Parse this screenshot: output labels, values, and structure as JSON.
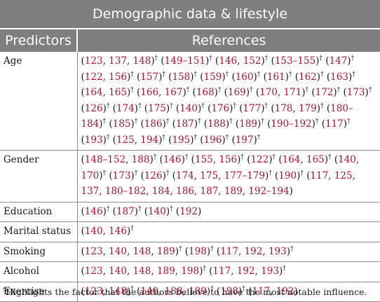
{
  "title": "Demographic data & lifestyle",
  "columns": [
    "Predictors",
    "References"
  ],
  "rows": [
    {
      "predictor": "Age",
      "refs": [
        {
          "nums": [
            "123",
            "137",
            "148"
          ],
          "dag": true
        },
        {
          "nums": [
            "149–151"
          ],
          "dag": true
        },
        {
          "nums": [
            "146",
            "152"
          ],
          "dag": true
        },
        {
          "nums": [
            "153–155"
          ],
          "dag": true
        },
        {
          "nums": [
            "147"
          ],
          "dag": true
        },
        {
          "nums": [
            "122",
            "156"
          ],
          "dag": true
        },
        {
          "nums": [
            "157"
          ],
          "dag": true
        },
        {
          "nums": [
            "158"
          ],
          "dag": true
        },
        {
          "nums": [
            "159"
          ],
          "dag": true
        },
        {
          "nums": [
            "160"
          ],
          "dag": true
        },
        {
          "nums": [
            "161"
          ],
          "dag": true
        },
        {
          "nums": [
            "162"
          ],
          "dag": true
        },
        {
          "nums": [
            "163"
          ],
          "dag": true
        },
        {
          "nums": [
            "164",
            "165"
          ],
          "dag": true
        },
        {
          "nums": [
            "166",
            "167"
          ],
          "dag": true
        },
        {
          "nums": [
            "168"
          ],
          "dag": true
        },
        {
          "nums": [
            "169"
          ],
          "dag": true
        },
        {
          "nums": [
            "170",
            "171"
          ],
          "dag": true
        },
        {
          "nums": [
            "172"
          ],
          "dag": true
        },
        {
          "nums": [
            "173"
          ],
          "dag": true
        },
        {
          "nums": [
            "126"
          ],
          "dag": true
        },
        {
          "nums": [
            "174"
          ],
          "dag": true
        },
        {
          "nums": [
            "175"
          ],
          "dag": true
        },
        {
          "nums": [
            "140"
          ],
          "dag": true
        },
        {
          "nums": [
            "176"
          ],
          "dag": true
        },
        {
          "nums": [
            "177"
          ],
          "dag": true
        },
        {
          "nums": [
            "178",
            "179"
          ],
          "dag": true
        },
        {
          "nums": [
            "180–184"
          ],
          "dag": true
        },
        {
          "nums": [
            "185"
          ],
          "dag": true
        },
        {
          "nums": [
            "186"
          ],
          "dag": true
        },
        {
          "nums": [
            "187"
          ],
          "dag": true
        },
        {
          "nums": [
            "188"
          ],
          "dag": true
        },
        {
          "nums": [
            "189"
          ],
          "dag": true
        },
        {
          "nums": [
            "190–192"
          ],
          "dag": true
        },
        {
          "nums": [
            "117"
          ],
          "dag": true
        },
        {
          "nums": [
            "193"
          ],
          "dag": true
        },
        {
          "nums": [
            "125",
            "194"
          ],
          "dag": true
        },
        {
          "nums": [
            "195"
          ],
          "dag": true
        },
        {
          "nums": [
            "196"
          ],
          "dag": true
        },
        {
          "nums": [
            "197"
          ],
          "dag": true
        }
      ]
    },
    {
      "predictor": "Gender",
      "refs": [
        {
          "nums": [
            "148–152",
            "188"
          ],
          "dag": true
        },
        {
          "nums": [
            "146"
          ],
          "dag": true
        },
        {
          "nums": [
            "155",
            "156"
          ],
          "dag": true
        },
        {
          "nums": [
            "122"
          ],
          "dag": true
        },
        {
          "nums": [
            "164",
            "165"
          ],
          "dag": true
        },
        {
          "nums": [
            "140",
            "170"
          ],
          "dag": true
        },
        {
          "nums": [
            "173"
          ],
          "dag": true
        },
        {
          "nums": [
            "126"
          ],
          "dag": true
        },
        {
          "nums": [
            "174",
            "175",
            "177–179"
          ],
          "dag": true
        },
        {
          "nums": [
            "190"
          ],
          "dag": true
        },
        {
          "nums": [
            "117",
            "125",
            "137",
            "180–182",
            "184",
            "186",
            "187",
            "189",
            "192–194"
          ],
          "dag": false
        }
      ]
    },
    {
      "predictor": "Education",
      "refs": [
        {
          "nums": [
            "146"
          ],
          "dag": true
        },
        {
          "nums": [
            "187"
          ],
          "dag": true
        },
        {
          "nums": [
            "140"
          ],
          "dag": true
        },
        {
          "nums": [
            "192"
          ],
          "dag": false
        }
      ]
    },
    {
      "predictor": "Marital status",
      "refs": [
        {
          "nums": [
            "140",
            "146"
          ],
          "dag": true
        }
      ]
    },
    {
      "predictor": "Smoking",
      "refs": [
        {
          "nums": [
            "123",
            "140",
            "148",
            "189"
          ],
          "dag": true
        },
        {
          "nums": [
            "198"
          ],
          "dag": true
        },
        {
          "nums": [
            "117",
            "192",
            "193"
          ],
          "dag": true
        }
      ]
    },
    {
      "predictor": "Alcohol",
      "refs": [
        {
          "nums": [
            "123",
            "140",
            "148",
            "189",
            "198"
          ],
          "dag": true
        },
        {
          "nums": [
            "117",
            "192",
            "193"
          ],
          "dag": true
        }
      ]
    },
    {
      "predictor": "Exercise",
      "refs": [
        {
          "nums": [
            "123",
            "148"
          ],
          "dag": true
        },
        {
          "nums": [
            "140",
            "188",
            "189"
          ],
          "dag": true
        },
        {
          "nums": [
            "198"
          ],
          "dag": true
        },
        {
          "nums": [
            "117",
            "192"
          ],
          "dag": false
        }
      ]
    }
  ],
  "dagger": "†",
  "footnote": "Highlights the factor that the authors believe to have the most notable influence.",
  "colors": {
    "header_bg": "#7f7f7f",
    "reference_red": "#b8102a"
  }
}
